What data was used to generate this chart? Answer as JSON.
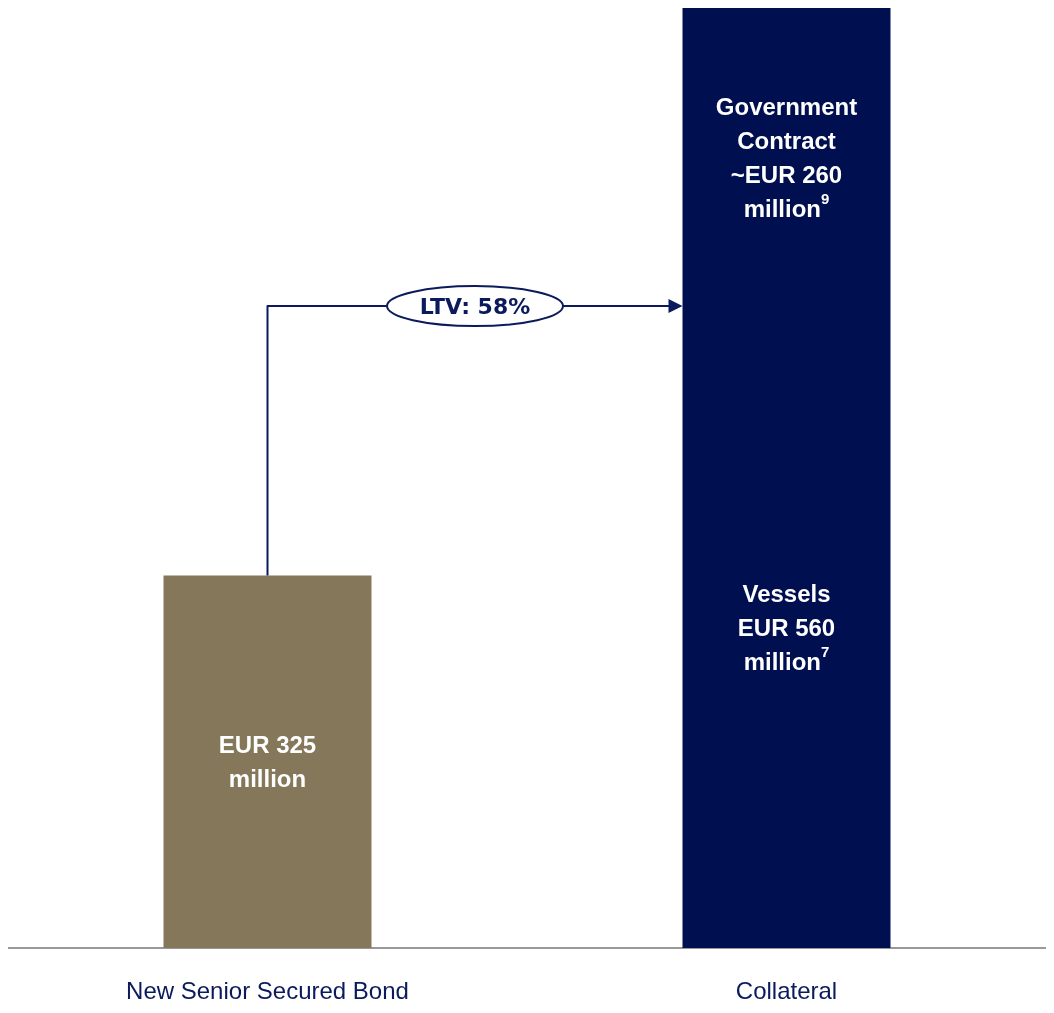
{
  "chart_data": {
    "type": "bar",
    "categories": [
      "New Senior Secured Bond",
      "Collateral"
    ],
    "stacked": true,
    "grid": false,
    "tick_labels": "x",
    "series": [
      {
        "colors": [
          "#857759",
          "#000f4f"
        ],
        "values": [
          325,
          560
        ],
        "value_labels": [
          "EUR 325\nmillion",
          "Vessels\nEUR 560\nmillion$^{7}$"
        ]
      },
      {
        "color": "#000f4f",
        "values": [
          null,
          260
        ],
        "value_labels": [
          null,
          "Government\nContract\n~EUR 260\nmillion$^{9}$"
        ]
      }
    ],
    "annotations": [
      "LTV: 58%"
    ]
  }
}
